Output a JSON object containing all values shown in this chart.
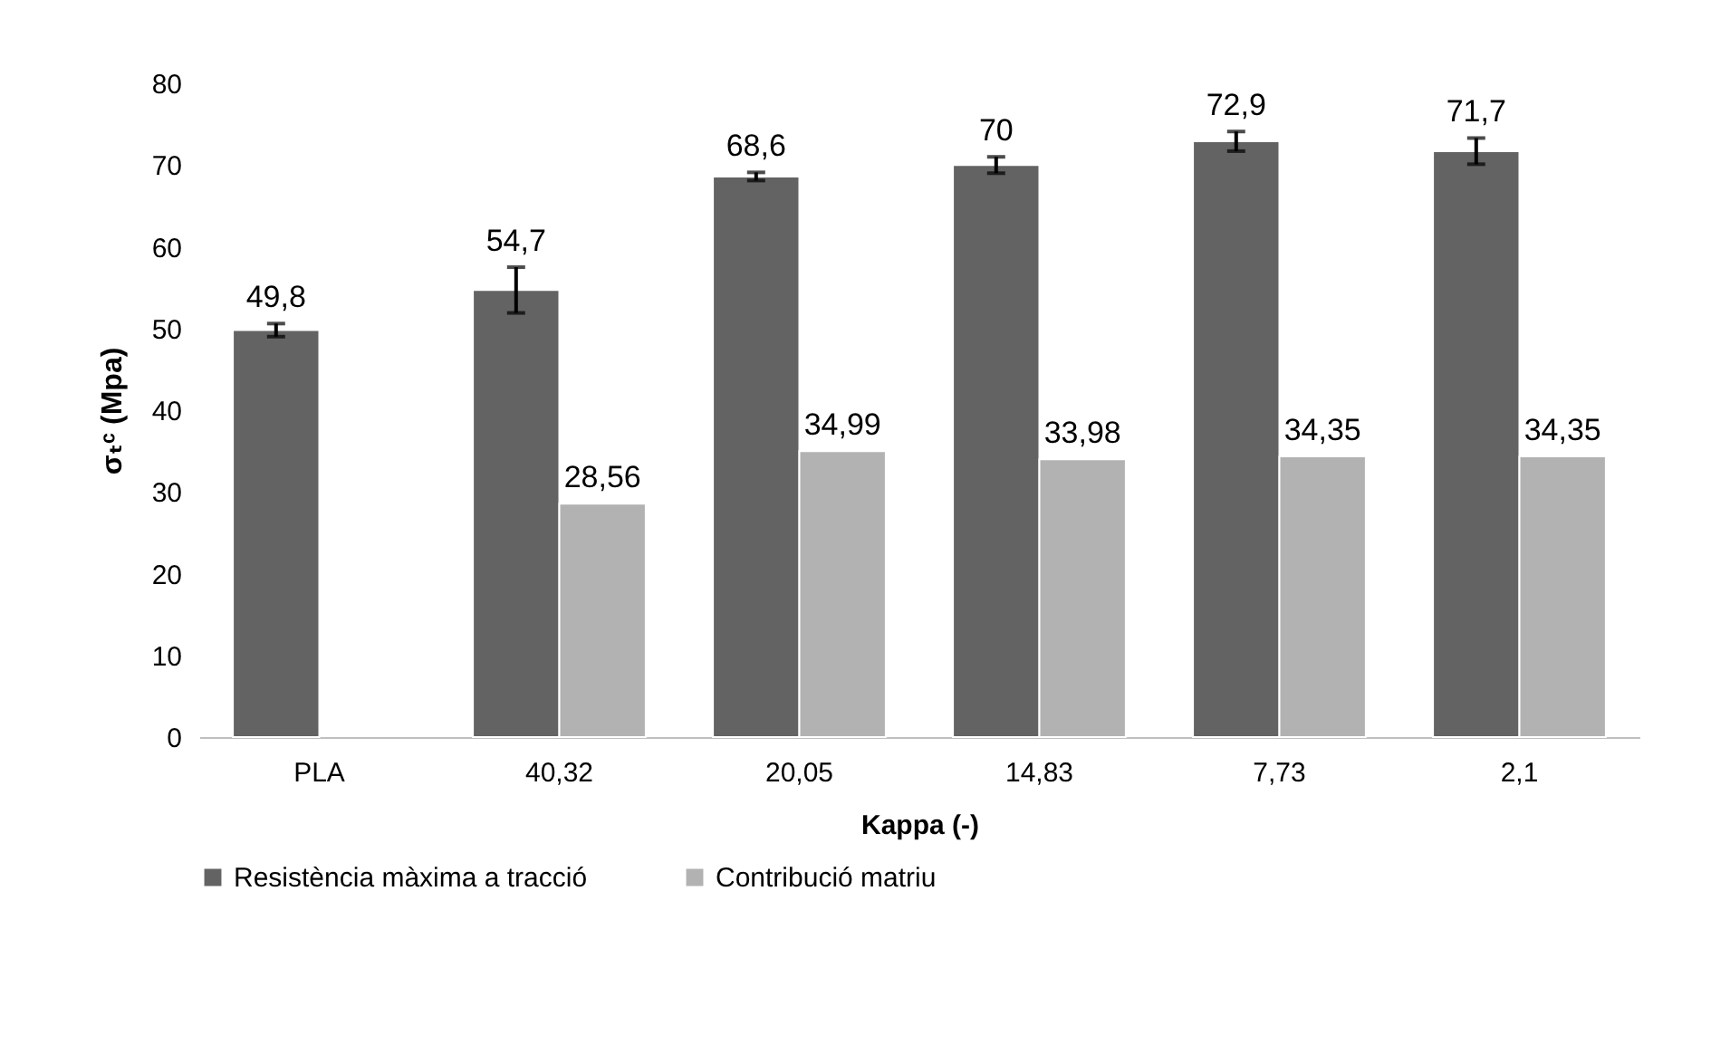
{
  "chart_data": {
    "type": "bar",
    "xlabel": "Kappa (-)",
    "ylabel": "σₜᶜ (Mpa)",
    "categories": [
      "PLA",
      "40,32",
      "20,05",
      "14,83",
      "7,73",
      "2,1"
    ],
    "series": [
      {
        "name": "Resistència màxima a tracció",
        "color": "#636363",
        "values": [
          49.8,
          54.7,
          68.6,
          70,
          72.9,
          71.7
        ],
        "errors": [
          0.8,
          2.8,
          0.5,
          1,
          1.2,
          1.6
        ],
        "value_labels": [
          "49,8",
          "54,7",
          "68,6",
          "70",
          "72,9",
          "71,7"
        ]
      },
      {
        "name": "Contribució matriu",
        "color": "#b2b2b2",
        "values": [
          null,
          28.56,
          34.99,
          33.98,
          34.35,
          34.35
        ],
        "value_labels": [
          null,
          "28,56",
          "34,99",
          "33,98",
          "34,35",
          "34,35"
        ]
      }
    ],
    "ylim": [
      0,
      80
    ],
    "yticks": [
      0,
      10,
      20,
      30,
      40,
      50,
      60,
      70,
      80
    ],
    "grid": false,
    "legend": "bottom"
  }
}
